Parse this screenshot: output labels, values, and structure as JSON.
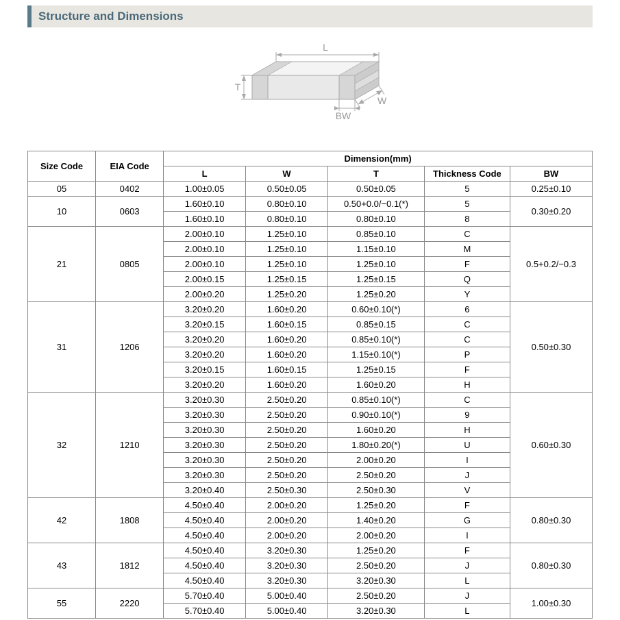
{
  "header": {
    "title": "Structure and Dimensions"
  },
  "diagram": {
    "labels": {
      "L": "L",
      "W": "W",
      "T": "T",
      "BW": "BW"
    },
    "stroke": "#a8a8a8",
    "fill_top": "#f4f4f4",
    "fill_front": "#e9e9e9",
    "fill_side": "#dedede",
    "term_fill": "#d0d0d0"
  },
  "table": {
    "header_group": "Dimension(mm)",
    "columns": {
      "size": "Size Code",
      "eia": "EIA Code",
      "L": "L",
      "W": "W",
      "T": "T",
      "TC": "Thickness  Code",
      "BW": "BW"
    },
    "groups": [
      {
        "size": "05",
        "eia": "0402",
        "bw": "0.25±0.10",
        "rows": [
          [
            "1.00±0.05",
            "0.50±0.05",
            "0.50±0.05",
            "5"
          ]
        ]
      },
      {
        "size": "10",
        "eia": "0603",
        "bw": "0.30±0.20",
        "rows": [
          [
            "1.60±0.10",
            "0.80±0.10",
            "0.50+0.0/−0.1(*)",
            "5"
          ],
          [
            "1.60±0.10",
            "0.80±0.10",
            "0.80±0.10",
            "8"
          ]
        ]
      },
      {
        "size": "21",
        "eia": "0805",
        "bw": "0.5+0.2/−0.3",
        "rows": [
          [
            "2.00±0.10",
            "1.25±0.10",
            "0.85±0.10",
            "C"
          ],
          [
            "2.00±0.10",
            "1.25±0.10",
            "1.15±0.10",
            "M"
          ],
          [
            "2.00±0.10",
            "1.25±0.10",
            "1.25±0.10",
            "F"
          ],
          [
            "2.00±0.15",
            "1.25±0.15",
            "1.25±0.15",
            "Q"
          ],
          [
            "2.00±0.20",
            "1.25±0.20",
            "1.25±0.20",
            "Y"
          ]
        ]
      },
      {
        "size": "31",
        "eia": "1206",
        "bw": "0.50±0.30",
        "rows": [
          [
            "3.20±0.20",
            "1.60±0.20",
            "0.60±0.10(*)",
            "6"
          ],
          [
            "3.20±0.15",
            "1.60±0.15",
            "0.85±0.15",
            "C"
          ],
          [
            "3.20±0.20",
            "1.60±0.20",
            "0.85±0.10(*)",
            "C"
          ],
          [
            "3.20±0.20",
            "1.60±0.20",
            "1.15±0.10(*)",
            "P"
          ],
          [
            "3.20±0.15",
            "1.60±0.15",
            "1.25±0.15",
            "F"
          ],
          [
            "3.20±0.20",
            "1.60±0.20",
            "1.60±0.20",
            "H"
          ]
        ]
      },
      {
        "size": "32",
        "eia": "1210",
        "bw": "0.60±0.30",
        "rows": [
          [
            "3.20±0.30",
            "2.50±0.20",
            "0.85±0.10(*)",
            "C"
          ],
          [
            "3.20±0.30",
            "2.50±0.20",
            "0.90±0.10(*)",
            "9"
          ],
          [
            "3.20±0.30",
            "2.50±0.20",
            "1.60±0.20",
            "H"
          ],
          [
            "3.20±0.30",
            "2.50±0.20",
            "1.80±0.20(*)",
            "U"
          ],
          [
            "3.20±0.30",
            "2.50±0.20",
            "2.00±0.20",
            "I"
          ],
          [
            "3.20±0.30",
            "2.50±0.20",
            "2.50±0.20",
            "J"
          ],
          [
            "3.20±0.40",
            "2.50±0.30",
            "2.50±0.30",
            "V"
          ]
        ]
      },
      {
        "size": "42",
        "eia": "1808",
        "bw": "0.80±0.30",
        "rows": [
          [
            "4.50±0.40",
            "2.00±0.20",
            "1.25±0.20",
            "F"
          ],
          [
            "4.50±0.40",
            "2.00±0.20",
            "1.40±0.20",
            "G"
          ],
          [
            "4.50±0.40",
            "2.00±0.20",
            "2.00±0.20",
            "I"
          ]
        ]
      },
      {
        "size": "43",
        "eia": "1812",
        "bw": "0.80±0.30",
        "rows": [
          [
            "4.50±0.40",
            "3.20±0.30",
            "1.25±0.20",
            "F"
          ],
          [
            "4.50±0.40",
            "3.20±0.30",
            "2.50±0.20",
            "J"
          ],
          [
            "4.50±0.40",
            "3.20±0.30",
            "3.20±0.30",
            "L"
          ]
        ]
      },
      {
        "size": "55",
        "eia": "2220",
        "bw": "1.00±0.30",
        "rows": [
          [
            "5.70±0.40",
            "5.00±0.40",
            "2.50±0.20",
            "J"
          ],
          [
            "5.70±0.40",
            "5.00±0.40",
            "3.20±0.30",
            "L"
          ]
        ]
      }
    ]
  }
}
